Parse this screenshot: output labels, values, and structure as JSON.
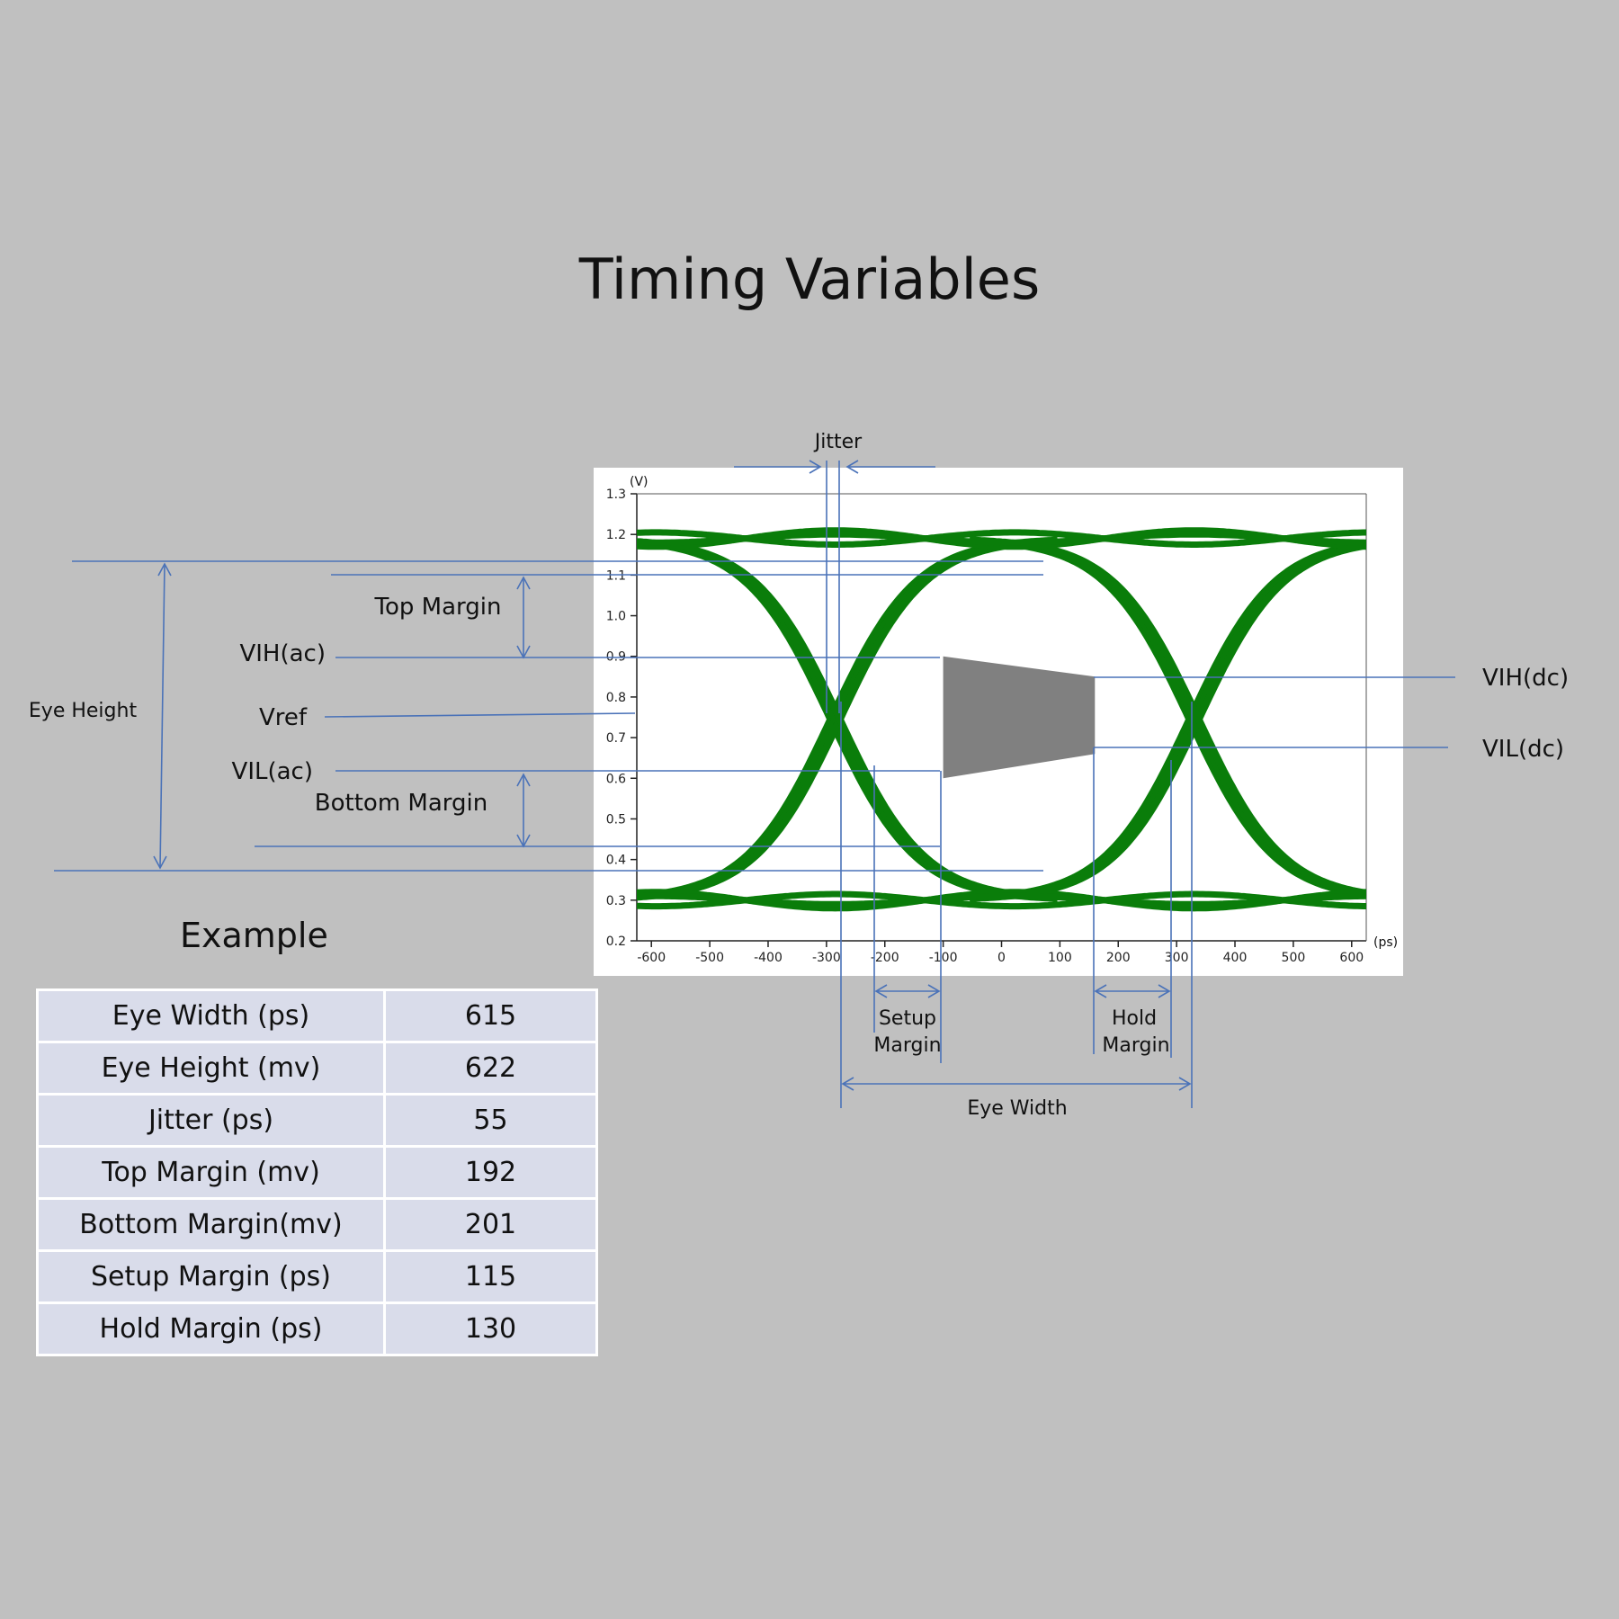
{
  "slide": {
    "title": "Timing Variables"
  },
  "chart_data": {
    "type": "line",
    "title": "",
    "x_unit_label": "(ps)",
    "y_unit_label": "(V)",
    "xlim": [
      -625,
      625
    ],
    "ylim": [
      0.2,
      1.3
    ],
    "x_ticks": [
      -600,
      -500,
      -400,
      -300,
      -200,
      -100,
      0,
      100,
      200,
      300,
      400,
      500,
      600
    ],
    "x_tick_labels": [
      "-600",
      "-500",
      "-400",
      "-300",
      "-200",
      "-100",
      "0",
      "100",
      "200",
      "300",
      "400",
      "500",
      "600"
    ],
    "y_ticks": [
      1.3,
      1.2,
      1.1,
      1.0,
      0.9,
      0.8,
      0.7,
      0.6,
      0.5,
      0.4,
      0.3,
      0.2
    ],
    "y_tick_labels": [
      "1.3",
      "1.2",
      "1.1",
      "1.0",
      "0.9",
      "0.8",
      "0.7",
      "0.6",
      "0.5",
      "0.4",
      "0.3",
      "0.2"
    ],
    "trace_color": "#0a7d0a",
    "crossings_ps": [
      -285,
      330
    ],
    "high_level_v": 1.19,
    "low_level_v": 0.3,
    "grid": false,
    "mask": {
      "color": "#808080",
      "x": [
        -100,
        160
      ],
      "y_top": [
        0.9,
        0.85
      ],
      "y_bottom": [
        0.6,
        0.66
      ]
    }
  },
  "annotations": {
    "color": "#4a72b8",
    "jitter": "Jitter",
    "top_margin": "Top Margin",
    "bottom_margin": "Bottom Margin",
    "vih_ac": "VIH(ac)",
    "vref": "Vref",
    "vil_ac": "VIL(ac)",
    "eye_height": "Eye Height",
    "vih_dc": "VIH(dc)",
    "vil_dc": "VIL(dc)",
    "setup_margin_1": "Setup",
    "setup_margin_2": "Margin",
    "hold_margin_1": "Hold",
    "hold_margin_2": "Margin",
    "eye_width": "Eye Width"
  },
  "example": {
    "title": "Example",
    "rows": [
      {
        "label": "Eye Width (ps)",
        "value": "615"
      },
      {
        "label": "Eye Height (mv)",
        "value": "622"
      },
      {
        "label": "Jitter (ps)",
        "value": "55"
      },
      {
        "label": "Top Margin (mv)",
        "value": "192"
      },
      {
        "label": "Bottom Margin(mv)",
        "value": "201"
      },
      {
        "label": "Setup Margin (ps)",
        "value": "115"
      },
      {
        "label": "Hold Margin (ps)",
        "value": "130"
      }
    ]
  }
}
